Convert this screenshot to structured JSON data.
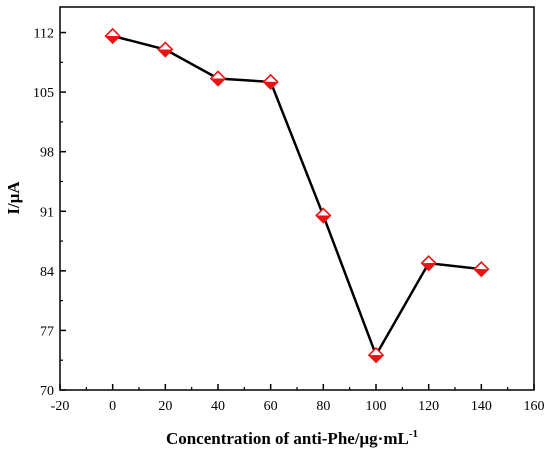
{
  "chart_data": {
    "type": "line",
    "title": "",
    "xlabel": "Concentration of anti-Phe/μg·mL",
    "xlabel_sup": "-1",
    "ylabel": "I/μA",
    "xlim": [
      -20,
      160
    ],
    "ylim": [
      70,
      115
    ],
    "xticks": [
      -20,
      0,
      20,
      40,
      60,
      80,
      100,
      120,
      140,
      160
    ],
    "xtick_labels": [
      "-20",
      "0",
      "20",
      "40",
      "60",
      "80",
      "100",
      "120",
      "140",
      "160"
    ],
    "yticks": [
      70,
      77,
      84,
      91,
      98,
      105,
      112
    ],
    "ytick_labels": [
      "70",
      "77",
      "84",
      "91",
      "98",
      "105",
      "112"
    ],
    "grid": false,
    "series": [
      {
        "x": [
          0,
          20,
          40,
          60,
          80,
          100,
          120,
          140
        ],
        "y": [
          111.6,
          110.0,
          106.6,
          106.2,
          90.5,
          74.1,
          84.9,
          84.2
        ],
        "line_color": "#000000",
        "marker": "diamond",
        "marker_color": "#ee1111"
      }
    ]
  }
}
